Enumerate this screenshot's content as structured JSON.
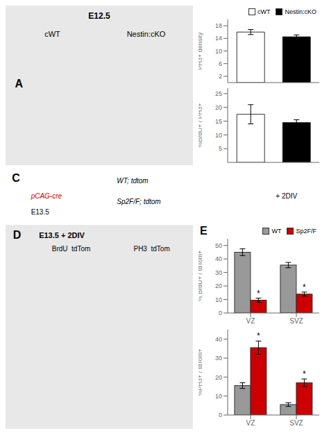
{
  "chart_data": [
    {
      "type": "text",
      "annotations": [
        "E12.5",
        "cWT",
        "Nestin:cKO",
        "A"
      ]
    },
    {
      "type": "bar",
      "ylabel": "PH3+ density",
      "categories": [
        "cWT",
        "Nestin:cKO"
      ],
      "values": [
        16.0,
        14.5
      ],
      "errors": [
        0.8,
        0.6
      ],
      "colors": [
        "white",
        "black"
      ],
      "ylim": [
        0,
        20
      ],
      "yticks": [
        2,
        6,
        10,
        14,
        18
      ],
      "tick_labels": "y",
      "legend": "upper right"
    },
    {
      "type": "bar",
      "ylabel": "%BrdU+ / PH3+",
      "categories": [
        "cWT",
        "Nestin:cKO"
      ],
      "values": [
        17.5,
        14.5
      ],
      "errors": [
        3.5,
        1.0
      ],
      "colors": [
        "white",
        "black"
      ],
      "ylim": [
        0,
        27
      ],
      "yticks": [
        5,
        10,
        15,
        20,
        25
      ],
      "tick_labels": "y"
    },
    {
      "type": "text",
      "annotations": [
        "C",
        "pCAG-cre",
        "WT; tdtom",
        "Sp2F/F; tdtom",
        "E13.5",
        "+ 2DIV"
      ]
    },
    {
      "type": "text",
      "annotations": [
        "D",
        "E13.5 + 2DIV",
        "BrdU  tdTom",
        "PH3  tdTom"
      ]
    },
    {
      "type": "bar",
      "ylabel": "% BrdU+ / tdTom+",
      "annotations": [
        "E"
      ],
      "categories": [
        "VZ",
        "SVZ"
      ],
      "series": [
        {
          "name": "WT",
          "color": "#999999",
          "values": [
            45.0,
            35.5
          ],
          "errors": [
            2.5,
            2.0
          ]
        },
        {
          "name": "Sp2F/F",
          "color": "#cc0000",
          "values": [
            9.5,
            14.0
          ],
          "errors": [
            1.5,
            1.5
          ],
          "annotations": [
            "*",
            "*"
          ]
        }
      ],
      "ylim": [
        0,
        55
      ],
      "yticks": [
        0,
        10,
        20,
        30,
        40,
        50
      ],
      "legend": "upper right"
    },
    {
      "type": "bar",
      "ylabel": "%PH3+ / tdTom+",
      "categories": [
        "VZ",
        "SVZ"
      ],
      "series": [
        {
          "name": "WT",
          "color": "#999999",
          "values": [
            15.5,
            5.5
          ],
          "errors": [
            1.5,
            1.0
          ]
        },
        {
          "name": "Sp2F/F",
          "color": "#cc0000",
          "values": [
            35.5,
            17.0
          ],
          "errors": [
            3.5,
            2.0
          ],
          "annotations": [
            "*",
            "*"
          ]
        }
      ],
      "ylim": [
        0,
        45
      ],
      "yticks": [
        0,
        10,
        20,
        30,
        40
      ]
    }
  ]
}
